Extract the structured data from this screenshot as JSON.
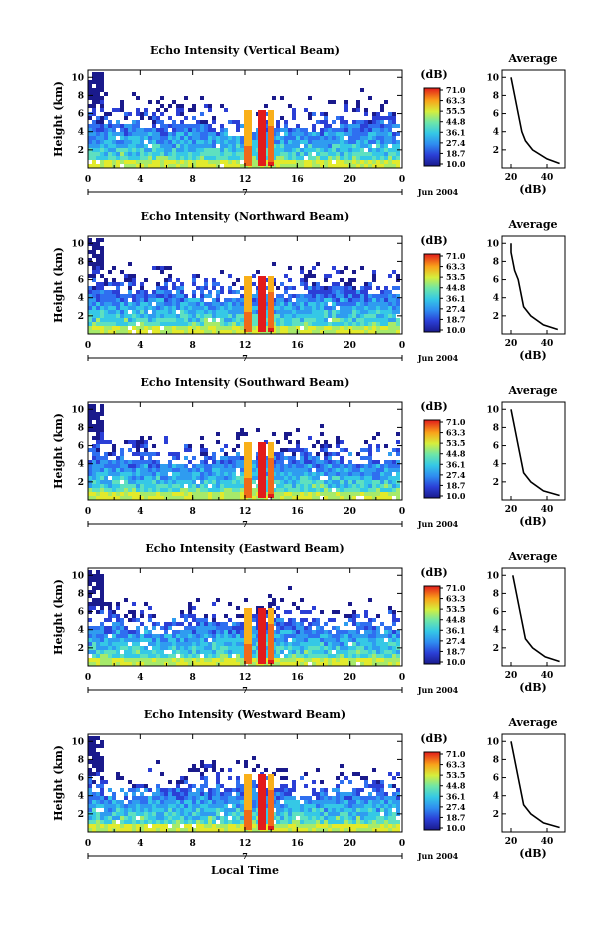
{
  "chart_data": [
    {
      "type": "heatmap",
      "title": "Echo Intensity (Vertical Beam)",
      "ylabel": "Height (km)",
      "x_ticks": [
        "0",
        "4",
        "8",
        "12",
        "16",
        "20",
        "0"
      ],
      "y_ticks": [
        "2",
        "4",
        "6",
        "8",
        "10"
      ],
      "date_label": "7",
      "month_label": "Jun 2004",
      "colorbar": {
        "unit": "(dB)",
        "levels": [
          "71.0",
          "63.3",
          "55.5",
          "44.8",
          "36.1",
          "27.4",
          "18.7",
          "10.0"
        ]
      },
      "average": {
        "title": "Average",
        "xlabel": "(dB)",
        "x_ticks": [
          "20",
          "40"
        ],
        "y_ticks": [
          "2",
          "4",
          "6",
          "8",
          "10"
        ],
        "height_km": [
          0.5,
          1,
          2,
          3,
          4,
          5,
          6,
          7,
          8,
          9,
          10
        ],
        "db": [
          47,
          40,
          32,
          28,
          26,
          25,
          24,
          23,
          22,
          21,
          20
        ]
      }
    },
    {
      "type": "heatmap",
      "title": "Echo Intensity (Northward Beam)",
      "ylabel": "Height (km)",
      "x_ticks": [
        "0",
        "4",
        "8",
        "12",
        "16",
        "20",
        "0"
      ],
      "y_ticks": [
        "2",
        "4",
        "6",
        "8",
        "10"
      ],
      "date_label": "7",
      "month_label": "Jun 2004",
      "colorbar": {
        "unit": "(dB)",
        "levels": [
          "71.0",
          "63.3",
          "53.5",
          "44.8",
          "36.1",
          "27.4",
          "18.7",
          "10.0"
        ]
      },
      "average": {
        "title": "Average",
        "xlabel": "(dB)",
        "x_ticks": [
          "20",
          "40"
        ],
        "y_ticks": [
          "2",
          "4",
          "6",
          "8",
          "10"
        ],
        "height_km": [
          0.5,
          1,
          2,
          3,
          4,
          5,
          6,
          7,
          8,
          9,
          10
        ],
        "db": [
          46,
          38,
          31,
          27,
          26,
          25,
          24,
          22,
          21,
          20,
          20
        ]
      }
    },
    {
      "type": "heatmap",
      "title": "Echo Intensity (Southward Beam)",
      "ylabel": "Height (km)",
      "x_ticks": [
        "0",
        "4",
        "8",
        "12",
        "16",
        "20",
        "0"
      ],
      "y_ticks": [
        "2",
        "4",
        "6",
        "8",
        "10"
      ],
      "date_label": "7",
      "month_label": "Jun 2004",
      "colorbar": {
        "unit": "(dB)",
        "levels": [
          "71.0",
          "63.3",
          "53.5",
          "44.8",
          "36.1",
          "27.4",
          "18.7",
          "10.0"
        ]
      },
      "average": {
        "title": "Average",
        "xlabel": "(dB)",
        "x_ticks": [
          "20",
          "40"
        ],
        "y_ticks": [
          "2",
          "4",
          "6",
          "8",
          "10"
        ],
        "height_km": [
          0.5,
          1,
          2,
          3,
          4,
          5,
          6,
          7,
          8,
          9,
          10
        ],
        "db": [
          47,
          38,
          31,
          27,
          26,
          25,
          24,
          23,
          22,
          21,
          20
        ]
      }
    },
    {
      "type": "heatmap",
      "title": "Echo Intensity (Eastward Beam)",
      "ylabel": "Height (km)",
      "x_ticks": [
        "0",
        "4",
        "8",
        "12",
        "16",
        "20",
        "0"
      ],
      "y_ticks": [
        "2",
        "4",
        "6",
        "8",
        "10"
      ],
      "date_label": "7",
      "month_label": "Jun 2004",
      "colorbar": {
        "unit": "(dB)",
        "levels": [
          "71.0",
          "63.3",
          "53.5",
          "44.8",
          "36.1",
          "27.4",
          "18.7",
          "10.0"
        ]
      },
      "average": {
        "title": "Average",
        "xlabel": "(dB)",
        "x_ticks": [
          "20",
          "40"
        ],
        "y_ticks": [
          "2",
          "4",
          "6",
          "8",
          "10"
        ],
        "height_km": [
          0.5,
          1,
          2,
          3,
          4,
          5,
          6,
          7,
          8,
          9,
          10
        ],
        "db": [
          47,
          39,
          32,
          28,
          27,
          26,
          25,
          24,
          23,
          22,
          21
        ]
      }
    },
    {
      "type": "heatmap",
      "title": "Echo Intensity (Westward Beam)",
      "ylabel": "Height (km)",
      "xlabel": "Local Time",
      "x_ticks": [
        "0",
        "4",
        "8",
        "12",
        "16",
        "20",
        "0"
      ],
      "y_ticks": [
        "2",
        "4",
        "6",
        "8",
        "10"
      ],
      "date_label": "7",
      "month_label": "Jun 2004",
      "colorbar": {
        "unit": "(dB)",
        "levels": [
          "71.0",
          "63.3",
          "53.5",
          "44.8",
          "36.1",
          "27.4",
          "18.7",
          "10.0"
        ]
      },
      "average": {
        "title": "Average",
        "xlabel": "(dB)",
        "x_ticks": [
          "20",
          "40"
        ],
        "y_ticks": [
          "2",
          "4",
          "6",
          "8",
          "10"
        ],
        "height_km": [
          0.5,
          1,
          2,
          3,
          4,
          5,
          6,
          7,
          8,
          9,
          10
        ],
        "db": [
          47,
          38,
          31,
          27,
          26,
          25,
          24,
          23,
          22,
          21,
          20
        ]
      }
    }
  ]
}
